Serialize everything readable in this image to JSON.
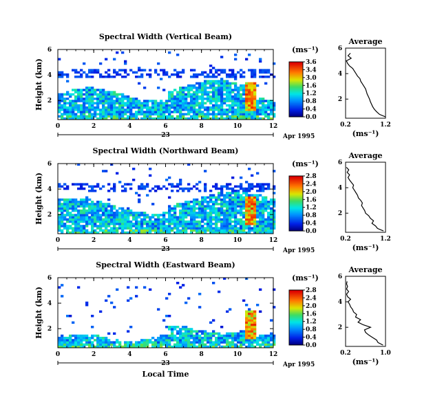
{
  "figure": {
    "xlabel": "Local Time",
    "date_label": "Apr 1995",
    "day_marker": "23"
  },
  "chart_data": [
    {
      "type": "heatmap",
      "title": "Spectral Width (Vertical Beam)",
      "ylabel": "Height (km)",
      "xlabel": "Local Time",
      "xlim": [
        0,
        12
      ],
      "ylim": [
        0.5,
        6
      ],
      "xticks": [
        "0",
        "2",
        "4",
        "6",
        "8",
        "10",
        "12"
      ],
      "yticks": [
        "2",
        "4",
        "6"
      ],
      "colorbar": {
        "unit": "(ms⁻¹)",
        "ticks": [
          "3.6",
          "3.4",
          "3.0",
          "1.6",
          "1.2",
          "0.8",
          "0.4",
          "0.0"
        ],
        "range": [
          0,
          3.6
        ]
      },
      "average_profile": {
        "title": "Average",
        "xlabel": "(ms⁻¹)",
        "xticks": [
          "0.2",
          "1.2"
        ],
        "xlim": [
          0.2,
          1.2
        ],
        "yticks": [
          "2",
          "4",
          "6"
        ],
        "ylim": [
          0.5,
          6
        ],
        "height_km": [
          0.6,
          0.8,
          1.0,
          1.2,
          1.4,
          1.6,
          1.8,
          2.0,
          2.2,
          2.4,
          2.6,
          2.8,
          3.0,
          3.2,
          3.4,
          3.6,
          3.8,
          4.0,
          4.2,
          4.4,
          4.6,
          4.8,
          5.0,
          5.2,
          5.4,
          5.6
        ],
        "width": [
          1.2,
          1.05,
          0.98,
          0.92,
          0.88,
          0.85,
          0.82,
          0.8,
          0.77,
          0.74,
          0.72,
          0.7,
          0.66,
          0.62,
          0.58,
          0.56,
          0.5,
          0.46,
          0.42,
          0.38,
          0.3,
          0.25,
          0.22,
          0.34,
          0.26,
          0.32
        ]
      }
    },
    {
      "type": "heatmap",
      "title": "Spectral Width (Northward Beam)",
      "ylabel": "Height (km)",
      "xlabel": "Local Time",
      "xlim": [
        0,
        12
      ],
      "ylim": [
        0.5,
        6
      ],
      "xticks": [
        "0",
        "2",
        "4",
        "6",
        "8",
        "10",
        "12"
      ],
      "yticks": [
        "2",
        "4",
        "6"
      ],
      "colorbar": {
        "unit": "(ms⁻¹)",
        "ticks": [
          "2.8",
          "2.4",
          "2.0",
          "1.6",
          "1.2",
          "0.8",
          "0.4",
          "0.0"
        ],
        "range": [
          0,
          2.8
        ]
      },
      "average_profile": {
        "title": "Average",
        "xlabel": "(ms⁻¹)",
        "xticks": [
          "0.2",
          "1.2"
        ],
        "xlim": [
          0.2,
          1.2
        ],
        "yticks": [
          "2",
          "4",
          "6"
        ],
        "ylim": [
          0.5,
          6
        ],
        "height_km": [
          0.6,
          0.8,
          1.0,
          1.2,
          1.4,
          1.6,
          1.8,
          2.0,
          2.2,
          2.4,
          2.6,
          2.8,
          3.0,
          3.2,
          3.4,
          3.6,
          3.8,
          4.0,
          4.2,
          4.4,
          4.6,
          4.8,
          5.0,
          5.2,
          5.4,
          5.6
        ],
        "width": [
          1.15,
          1.0,
          0.95,
          0.86,
          0.9,
          0.82,
          0.78,
          0.7,
          0.68,
          0.64,
          0.6,
          0.62,
          0.58,
          0.52,
          0.5,
          0.46,
          0.42,
          0.38,
          0.4,
          0.35,
          0.3,
          0.26,
          0.3,
          0.24,
          0.28,
          0.22
        ]
      }
    },
    {
      "type": "heatmap",
      "title": "Spectral Width (Eastward Beam)",
      "ylabel": "Height (km)",
      "xlabel": "Local Time",
      "xlim": [
        0,
        12
      ],
      "ylim": [
        0.5,
        6
      ],
      "xticks": [
        "0",
        "2",
        "4",
        "6",
        "8",
        "10",
        "12"
      ],
      "yticks": [
        "2",
        "4",
        "6"
      ],
      "colorbar": {
        "unit": "(ms⁻¹)",
        "ticks": [
          "2.8",
          "2.4",
          "2.0",
          "1.6",
          "1.2",
          "0.8",
          "0.4",
          "0.0"
        ],
        "range": [
          0,
          2.8
        ]
      },
      "average_profile": {
        "title": "Average",
        "xlabel": "(ms⁻¹)",
        "xticks": [
          "0.2",
          "1.0"
        ],
        "xlim": [
          0.2,
          1.0
        ],
        "yticks": [
          "2",
          "4",
          "6"
        ],
        "ylim": [
          0.5,
          6
        ],
        "height_km": [
          0.6,
          0.8,
          1.0,
          1.2,
          1.4,
          1.6,
          1.8,
          2.0,
          2.2,
          2.4,
          2.6,
          2.8,
          3.0,
          3.2,
          3.4,
          3.6,
          3.8,
          4.0,
          4.2,
          4.4,
          4.6,
          4.8,
          5.0,
          5.2,
          5.4,
          5.6
        ],
        "width": [
          0.95,
          0.85,
          0.82,
          0.74,
          0.66,
          0.6,
          0.58,
          0.7,
          0.55,
          0.45,
          0.5,
          0.4,
          0.42,
          0.36,
          0.34,
          0.3,
          0.28,
          0.25,
          0.3,
          0.24,
          0.22,
          0.26,
          0.22,
          0.24,
          0.22,
          0.23
        ]
      }
    }
  ]
}
